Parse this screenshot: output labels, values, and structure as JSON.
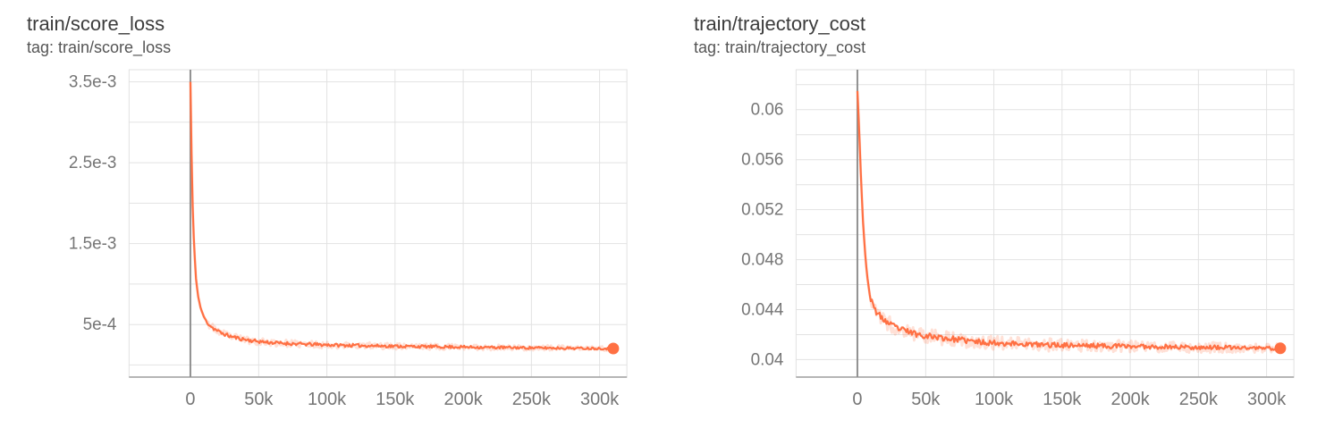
{
  "colors": {
    "background": "#ffffff",
    "grid": "#e2e2e2",
    "axis": "#9e9e9e",
    "zero_line": "#8f8f8f",
    "tick_text": "#757575",
    "title_text": "#3c3c3c",
    "tag_text": "#555555",
    "series_orange": "#ff7043"
  },
  "chart_data": [
    {
      "type": "line",
      "title": "train/score_loss",
      "tag": "tag: train/score_loss",
      "xlim": [
        -45000,
        320000
      ],
      "ylim": [
        -0.00015,
        0.00365
      ],
      "grid": true,
      "legend": "none",
      "x_ticks": [
        {
          "value": 0,
          "label": "0"
        },
        {
          "value": 50000,
          "label": "50k"
        },
        {
          "value": 100000,
          "label": "100k"
        },
        {
          "value": 150000,
          "label": "150k"
        },
        {
          "value": 200000,
          "label": "200k"
        },
        {
          "value": 250000,
          "label": "250k"
        },
        {
          "value": 300000,
          "label": "300k"
        }
      ],
      "y_ticks": [
        {
          "value": 0.0005,
          "label": "5e-4"
        },
        {
          "value": 0.0015,
          "label": "1.5e-3"
        },
        {
          "value": 0.0025,
          "label": "2.5e-3"
        },
        {
          "value": 0.0035,
          "label": "3.5e-3"
        }
      ],
      "y_gridlines": [
        0,
        0.0005,
        0.001,
        0.0015,
        0.002,
        0.0025,
        0.003,
        0.0035
      ],
      "zero_line_x": 0,
      "series": [
        {
          "color": "#ff7043",
          "points": [
            [
              0,
              0.0035
            ],
            [
              800,
              0.00262
            ],
            [
              1600,
              0.00198
            ],
            [
              2600,
              0.0015
            ],
            [
              4000,
              0.00108
            ],
            [
              5500,
              0.00086
            ],
            [
              7500,
              0.0007
            ],
            [
              10000,
              0.00059
            ],
            [
              13000,
              0.00051
            ],
            [
              17000,
              0.00045
            ],
            [
              22000,
              0.0004
            ],
            [
              28000,
              0.00036
            ],
            [
              35000,
              0.00033
            ],
            [
              45000,
              0.0003
            ],
            [
              60000,
              0.000275
            ],
            [
              80000,
              0.000258
            ],
            [
              110000,
              0.000244
            ],
            [
              150000,
              0.000232
            ],
            [
              200000,
              0.000221
            ],
            [
              250000,
              0.000212
            ],
            [
              310000,
              0.000203
            ]
          ],
          "final_step": 310000,
          "final_value": 0.000203,
          "noise_amplitude": 2e-05,
          "halo_amplitude": 4.2e-05,
          "noise_start_step": 12000,
          "noise_seed": 11,
          "end_marker": true
        }
      ]
    },
    {
      "type": "line",
      "title": "train/trajectory_cost",
      "tag": "tag: train/trajectory_cost",
      "xlim": [
        -45000,
        320000
      ],
      "ylim": [
        0.0386,
        0.0632
      ],
      "grid": true,
      "legend": "none",
      "x_ticks": [
        {
          "value": 0,
          "label": "0"
        },
        {
          "value": 50000,
          "label": "50k"
        },
        {
          "value": 100000,
          "label": "100k"
        },
        {
          "value": 150000,
          "label": "150k"
        },
        {
          "value": 200000,
          "label": "200k"
        },
        {
          "value": 250000,
          "label": "250k"
        },
        {
          "value": 300000,
          "label": "300k"
        }
      ],
      "y_ticks": [
        {
          "value": 0.04,
          "label": "0.04"
        },
        {
          "value": 0.044,
          "label": "0.044"
        },
        {
          "value": 0.048,
          "label": "0.048"
        },
        {
          "value": 0.052,
          "label": "0.052"
        },
        {
          "value": 0.056,
          "label": "0.056"
        },
        {
          "value": 0.06,
          "label": "0.06"
        }
      ],
      "y_gridlines": [
        0.04,
        0.042,
        0.044,
        0.046,
        0.048,
        0.05,
        0.052,
        0.054,
        0.056,
        0.058,
        0.06,
        0.062
      ],
      "zero_line_x": 0,
      "series": [
        {
          "color": "#ff7043",
          "points": [
            [
              0,
              0.0615
            ],
            [
              1200,
              0.0586
            ],
            [
              2500,
              0.0548
            ],
            [
              4000,
              0.0512
            ],
            [
              5500,
              0.0487
            ],
            [
              7000,
              0.0468
            ],
            [
              9000,
              0.0452
            ],
            [
              11000,
              0.0444
            ],
            [
              14000,
              0.0438
            ],
            [
              18000,
              0.0433
            ],
            [
              24000,
              0.0428
            ],
            [
              32000,
              0.0424
            ],
            [
              45000,
              0.042
            ],
            [
              65000,
              0.0417
            ],
            [
              90000,
              0.0414
            ],
            [
              130000,
              0.0412
            ],
            [
              180000,
              0.0411
            ],
            [
              240000,
              0.041
            ],
            [
              310000,
              0.0409
            ]
          ],
          "final_step": 310000,
          "final_value": 0.0409,
          "noise_amplitude": 0.00022,
          "halo_amplitude": 0.00055,
          "noise_start_step": 9000,
          "noise_seed": 23,
          "end_marker": true
        }
      ]
    }
  ]
}
